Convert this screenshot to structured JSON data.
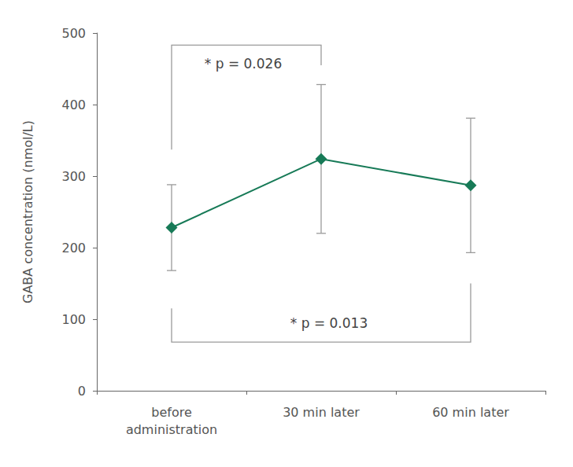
{
  "chart_data": {
    "type": "line",
    "y_label": "GABA concentration (nmol/L)",
    "categories": [
      "before\nadministration",
      "30 min later",
      "60 min later"
    ],
    "values": [
      228,
      324,
      287
    ],
    "errors": [
      60,
      104,
      94
    ],
    "color": "#177a57",
    "marker": "diamond",
    "ylim": [
      0,
      500
    ],
    "yticks": [
      0,
      100,
      200,
      300,
      400,
      500
    ],
    "grid": false,
    "annotations": [
      {
        "text": "* p = 0.026",
        "from": 0,
        "to": 1
      },
      {
        "text": "* p = 0.013",
        "from": 0,
        "to": 2
      }
    ]
  }
}
